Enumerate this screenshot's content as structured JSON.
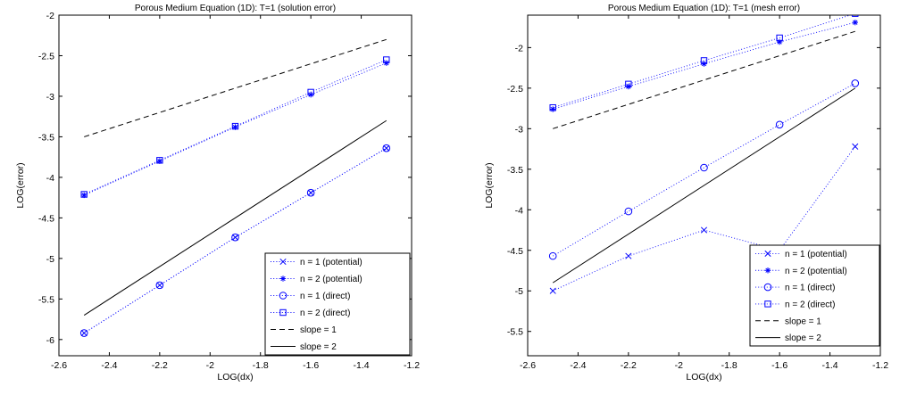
{
  "chart_data": [
    {
      "type": "line",
      "title": "Porous Medium Equation (1D): T=1 (solution error)",
      "xlabel": "LOG(dx)",
      "ylabel": "LOG(error)",
      "xlim": [
        -2.6,
        -1.2
      ],
      "ylim": [
        -6.2,
        -2
      ],
      "xticks": [
        -2.6,
        -2.4,
        -2.2,
        -2,
        -1.8,
        -1.6,
        -1.4,
        -1.2
      ],
      "yticks": [
        -6,
        -5.5,
        -5,
        -4.5,
        -4,
        -3.5,
        -3,
        -2.5,
        -2
      ],
      "xticklabels": [
        "-2.6",
        "-2.4",
        "-2.2",
        "-2",
        "-1.8",
        "-1.6",
        "-1.4",
        "-1.2"
      ],
      "yticklabels": [
        "-6",
        "-5.5",
        "-5",
        "-4.5",
        "-4",
        "-3.5",
        "-3",
        "-2.5",
        "-2"
      ],
      "grid": false,
      "legend_position": "bottom-right",
      "series": [
        {
          "name": "n = 1 (potential)",
          "marker": "x",
          "style": "dotted",
          "color": "#0000ff",
          "x": [
            -2.5,
            -2.2,
            -1.9,
            -1.6,
            -1.3
          ],
          "y": [
            -5.92,
            -5.33,
            -4.74,
            -4.19,
            -3.64
          ]
        },
        {
          "name": "n = 2 (potential)",
          "marker": "star",
          "style": "dotted",
          "color": "#0000ff",
          "x": [
            -2.5,
            -2.2,
            -1.9,
            -1.6,
            -1.3
          ],
          "y": [
            -4.22,
            -3.8,
            -3.38,
            -2.98,
            -2.59
          ]
        },
        {
          "name": "n = 1 (direct)",
          "marker": "circle",
          "style": "dotted",
          "color": "#0000ff",
          "x": [
            -2.5,
            -2.2,
            -1.9,
            -1.6,
            -1.3
          ],
          "y": [
            -5.92,
            -5.33,
            -4.74,
            -4.19,
            -3.64
          ]
        },
        {
          "name": "n = 2 (direct)",
          "marker": "square",
          "style": "dotted",
          "color": "#0000ff",
          "x": [
            -2.5,
            -2.2,
            -1.9,
            -1.6,
            -1.3
          ],
          "y": [
            -4.21,
            -3.79,
            -3.37,
            -2.95,
            -2.55
          ]
        },
        {
          "name": "slope = 1",
          "marker": "none",
          "style": "dashed",
          "color": "#000000",
          "x": [
            -2.5,
            -1.3
          ],
          "y": [
            -3.5,
            -2.3
          ]
        },
        {
          "name": "slope = 2",
          "marker": "none",
          "style": "solid",
          "color": "#000000",
          "x": [
            -2.5,
            -1.3
          ],
          "y": [
            -5.7,
            -3.3
          ]
        }
      ]
    },
    {
      "type": "line",
      "title": "Porous Medium Equation (1D): T=1 (mesh error)",
      "xlabel": "LOG(dx)",
      "ylabel": "LOG(error)",
      "xlim": [
        -2.6,
        -1.2
      ],
      "ylim": [
        -5.8,
        -1.6
      ],
      "xticks": [
        -2.6,
        -2.4,
        -2.2,
        -2,
        -1.8,
        -1.6,
        -1.4,
        -1.2
      ],
      "yticks": [
        -5.5,
        -5,
        -4.5,
        -4,
        -3.5,
        -3,
        -2.5,
        -2
      ],
      "xticklabels": [
        "-2.6",
        "-2.4",
        "-2.2",
        "-2",
        "-1.8",
        "-1.6",
        "-1.4",
        "-1.2"
      ],
      "yticklabels": [
        "-5.5",
        "-5",
        "-4.5",
        "-4",
        "-3.5",
        "-3",
        "-2.5",
        "-2"
      ],
      "grid": false,
      "legend_position": "bottom-right",
      "series": [
        {
          "name": "n = 1 (potential)",
          "marker": "x",
          "style": "dotted",
          "color": "#0000ff",
          "x": [
            -2.5,
            -2.2,
            -1.9,
            -1.6,
            -1.3
          ],
          "y": [
            -5.0,
            -4.57,
            -4.25,
            -4.5,
            -3.22
          ]
        },
        {
          "name": "n = 2 (potential)",
          "marker": "star",
          "style": "dotted",
          "color": "#0000ff",
          "x": [
            -2.5,
            -2.2,
            -1.9,
            -1.6,
            -1.3
          ],
          "y": [
            -2.76,
            -2.48,
            -2.2,
            -1.93,
            -1.69
          ]
        },
        {
          "name": "n = 1 (direct)",
          "marker": "circle",
          "style": "dotted",
          "color": "#0000ff",
          "x": [
            -2.5,
            -2.2,
            -1.9,
            -1.6,
            -1.3
          ],
          "y": [
            -4.57,
            -4.02,
            -3.48,
            -2.95,
            -2.44
          ]
        },
        {
          "name": "n = 2 (direct)",
          "marker": "square",
          "style": "dotted",
          "color": "#0000ff",
          "x": [
            -2.5,
            -2.2,
            -1.9,
            -1.6,
            -1.3
          ],
          "y": [
            -2.74,
            -2.45,
            -2.16,
            -1.88,
            -1.58
          ]
        },
        {
          "name": "slope = 1",
          "marker": "none",
          "style": "dashed",
          "color": "#000000",
          "x": [
            -2.5,
            -1.3
          ],
          "y": [
            -3.0,
            -1.8
          ]
        },
        {
          "name": "slope = 2",
          "marker": "none",
          "style": "solid",
          "color": "#000000",
          "x": [
            -2.5,
            -1.3
          ],
          "y": [
            -4.9,
            -2.5
          ]
        }
      ]
    }
  ]
}
